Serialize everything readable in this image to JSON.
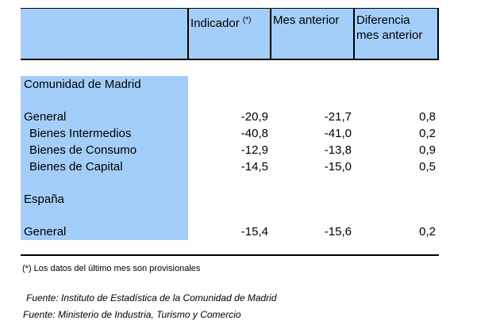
{
  "header": {
    "col_indicator": "Indicador",
    "col_indicator_note": "(*)",
    "col_prev_month": "Mes anterior",
    "col_diff_line1": "Diferencia",
    "col_diff_line2": "mes anterior"
  },
  "sections": [
    {
      "title": "Comunidad de Madrid",
      "rows": [
        {
          "label": "General",
          "indicator": "-20,9",
          "prev": "-21,7",
          "diff": "0,8"
        },
        {
          "label": "Bienes Intermedios",
          "indicator": "-40,8",
          "prev": "-41,0",
          "diff": "0,2"
        },
        {
          "label": "Bienes de Consumo",
          "indicator": "-12,9",
          "prev": "-13,8",
          "diff": "0,9"
        },
        {
          "label": "Bienes de Capital",
          "indicator": "-14,5",
          "prev": "-15,0",
          "diff": "0,5"
        }
      ]
    },
    {
      "title": "España",
      "rows": [
        {
          "label": "General",
          "indicator": "-15,4",
          "prev": "-15,6",
          "diff": "0,2"
        }
      ]
    }
  ],
  "footnote": "(*) Los datos del último mes son provisionales",
  "sources": [
    "Fuente: Instituto de Estadística de la Comunidad de Madrid",
    "Fuente: Ministerio de Industria, Turismo y Comercio"
  ],
  "colors": {
    "header_band": "#a3cef9",
    "label_band": "#a3cef9"
  }
}
